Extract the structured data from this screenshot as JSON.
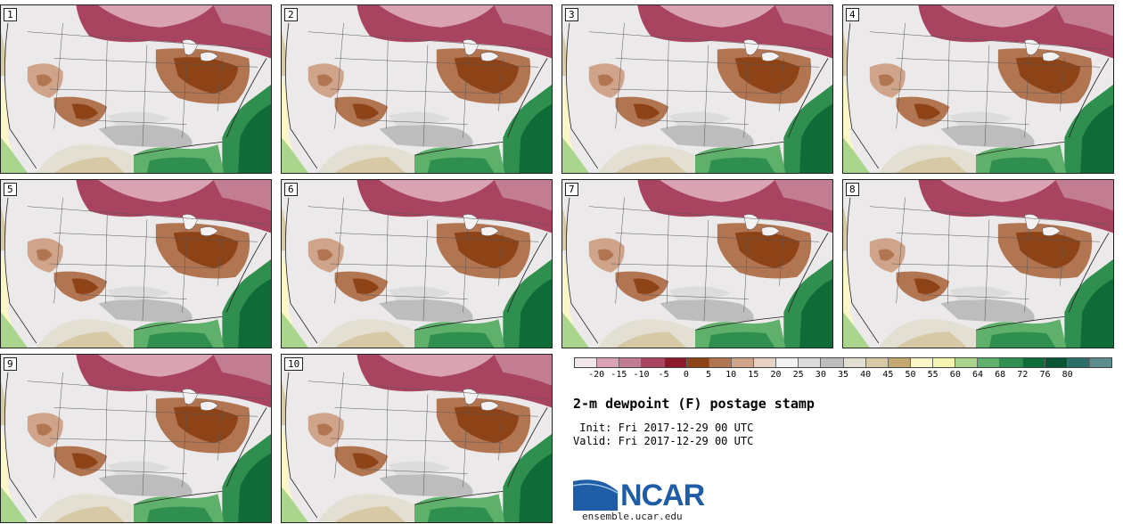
{
  "stamps": [
    {
      "label": "1"
    },
    {
      "label": "2"
    },
    {
      "label": "3"
    },
    {
      "label": "4"
    },
    {
      "label": "5"
    },
    {
      "label": "6"
    },
    {
      "label": "7"
    },
    {
      "label": "8"
    },
    {
      "label": "9"
    },
    {
      "label": "10"
    }
  ],
  "colorbar": {
    "ticks": [
      "-20",
      "-15",
      "-10",
      "-5",
      "0",
      "5",
      "10",
      "15",
      "20",
      "25",
      "30",
      "35",
      "40",
      "45",
      "50",
      "55",
      "60",
      "64",
      "68",
      "72",
      "76",
      "80"
    ],
    "colors": [
      "#f1e6ea",
      "#d9a3b3",
      "#c27d92",
      "#a8445f",
      "#8b1a2d",
      "#8e4317",
      "#b27551",
      "#cfa48a",
      "#e7d0c4",
      "#f4f1f2",
      "#dddcdc",
      "#bdbdbd",
      "#e3e0d3",
      "#d8c9a6",
      "#c3a86f",
      "#fbf6c8",
      "#f4f4b0",
      "#a9d58c",
      "#5fb06a",
      "#2f8f4e",
      "#0f6b38",
      "#0a5534",
      "#2d6e6a",
      "#5d8c8f"
    ]
  },
  "title": "2-m dewpoint (F) postage stamp",
  "init": " Init: Fri 2017-12-29 00 UTC",
  "valid": "Valid: Fri 2017-12-29 00 UTC",
  "logo": {
    "text": "NCAR",
    "url": "ensemble.ucar.edu"
  }
}
